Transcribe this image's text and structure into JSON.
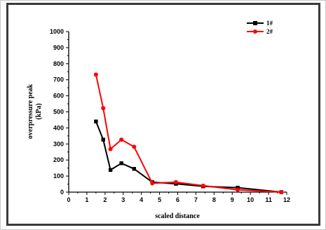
{
  "chart_data": {
    "type": "line",
    "xlabel": "scaled distance",
    "ylabel_line1": "overpressure peak",
    "ylabel_line2": "(kPa)",
    "xlim": [
      0,
      12
    ],
    "ylim": [
      0,
      1000
    ],
    "xticks": [
      0,
      1,
      2,
      3,
      4,
      5,
      6,
      7,
      8,
      9,
      10,
      11,
      12
    ],
    "yticks": [
      0,
      100,
      200,
      300,
      400,
      500,
      600,
      700,
      800,
      900,
      1000
    ],
    "grid": false,
    "legend_position": "top-right",
    "series": [
      {
        "name": "1#",
        "color": "#000000",
        "marker": "square",
        "x": [
          1.5,
          1.9,
          2.3,
          2.9,
          3.6,
          4.6,
          5.9,
          7.4,
          9.3,
          11.7
        ],
        "y": [
          440,
          327,
          138,
          180,
          145,
          62,
          52,
          36,
          28,
          0
        ]
      },
      {
        "name": "2#",
        "color": "#ff0000",
        "marker": "circle",
        "x": [
          1.5,
          1.9,
          2.3,
          2.9,
          3.6,
          4.6,
          5.9,
          7.4,
          9.3,
          11.7
        ],
        "y": [
          732,
          523,
          268,
          327,
          282,
          55,
          62,
          40,
          15,
          0
        ]
      }
    ]
  }
}
